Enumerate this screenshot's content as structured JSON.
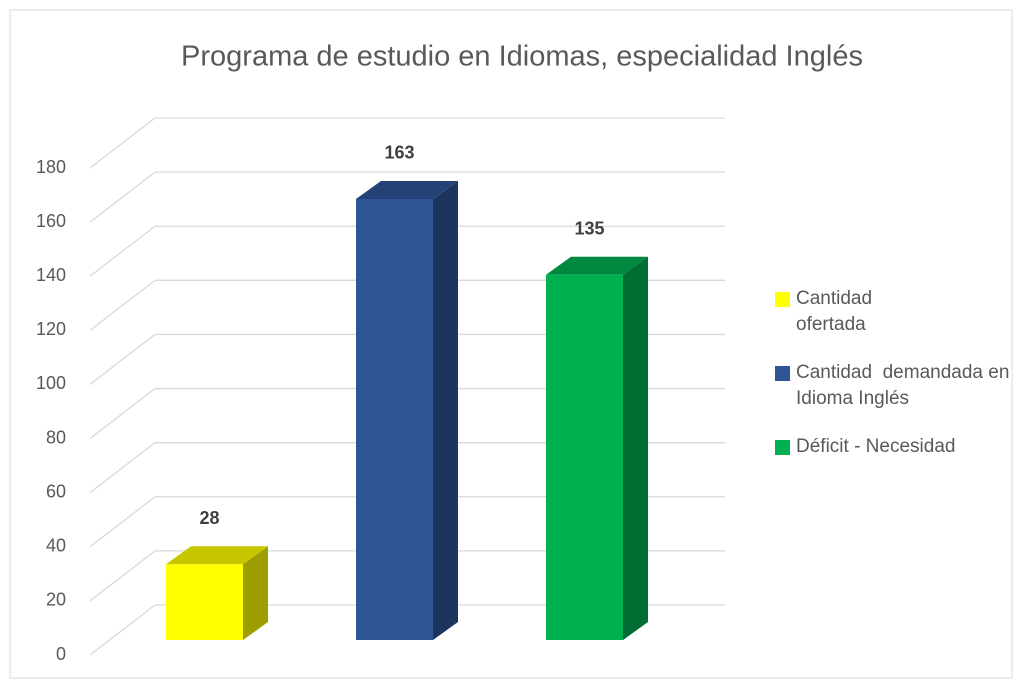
{
  "chart_data": {
    "type": "bar3d",
    "title": "Programa de estudio en Idiomas, especialidad Inglés",
    "series": [
      {
        "name": "Cantidad ofertada",
        "color": "#ffff00",
        "values": [
          28
        ]
      },
      {
        "name": "Cantidad  demandada en Idioma Inglés",
        "color": "#2f5597",
        "values": [
          163
        ]
      },
      {
        "name": "Déficit - Necesidad",
        "color": "#00b050",
        "values": [
          135
        ]
      }
    ],
    "ylim": [
      0,
      180
    ],
    "yticks": [
      0,
      20,
      40,
      60,
      80,
      100,
      120,
      140,
      160,
      180
    ],
    "grid": true,
    "legend": "right"
  }
}
